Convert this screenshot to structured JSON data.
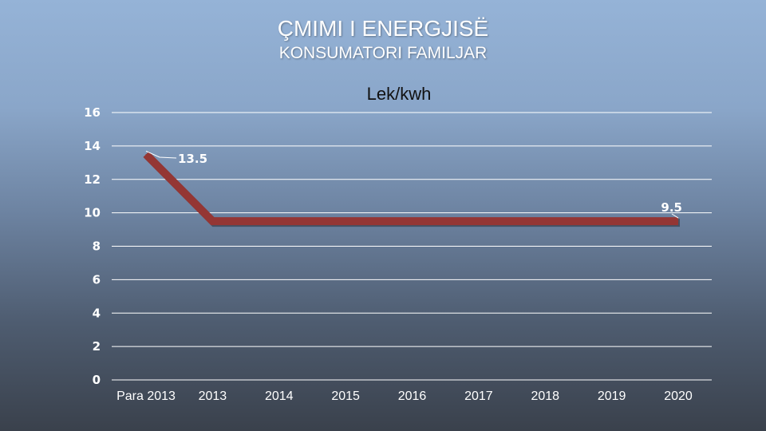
{
  "header": {
    "title": "ÇMIMI I ENERGJISË",
    "subtitle": "KONSUMATORI FAMILJAR"
  },
  "chart_data": {
    "type": "line",
    "title": "Lek/kwh",
    "categories": [
      "Para 2013",
      "2013",
      "2014",
      "2015",
      "2016",
      "2017",
      "2018",
      "2019",
      "2020"
    ],
    "series": [
      {
        "values": [
          13.5,
          9.5,
          9.5,
          9.5,
          9.5,
          9.5,
          9.5,
          9.5,
          9.5
        ]
      }
    ],
    "data_labels": [
      {
        "index": 0,
        "text": "13.5"
      },
      {
        "index": 8,
        "text": "9.5"
      }
    ],
    "yticks": [
      "0",
      "2",
      "4",
      "6",
      "8",
      "10",
      "12",
      "14",
      "16"
    ],
    "ylim": [
      0,
      16
    ],
    "grid": true,
    "line_color": "#943634",
    "text_color": "#ffffff"
  }
}
